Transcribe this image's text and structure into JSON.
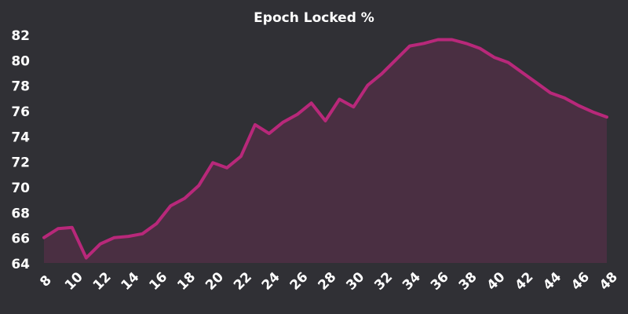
{
  "chart_data": {
    "type": "area",
    "title": "Epoch Locked %",
    "x": [
      8,
      9,
      10,
      11,
      12,
      13,
      14,
      15,
      16,
      17,
      18,
      19,
      20,
      21,
      22,
      23,
      24,
      25,
      26,
      27,
      28,
      29,
      30,
      31,
      32,
      33,
      34,
      35,
      36,
      37,
      38,
      39,
      40,
      41,
      42,
      43,
      44,
      45,
      46,
      47,
      48
    ],
    "series": [
      {
        "name": "Epoch Locked %",
        "color": "#b8287a",
        "fill": "#4a2f42",
        "values": [
          66.0,
          66.7,
          66.8,
          64.4,
          65.5,
          66.0,
          66.1,
          66.3,
          67.1,
          68.5,
          69.1,
          70.1,
          71.9,
          71.5,
          72.4,
          74.9,
          74.2,
          75.1,
          75.7,
          76.6,
          75.2,
          76.9,
          76.3,
          78.0,
          78.9,
          80.0,
          81.1,
          81.3,
          81.6,
          81.6,
          81.3,
          80.9,
          80.2,
          79.8,
          79.0,
          78.2,
          77.4,
          77.0,
          76.4,
          75.9,
          75.5
        ]
      }
    ],
    "xlim": [
      8,
      48
    ],
    "xticks": [
      8,
      10,
      12,
      14,
      16,
      18,
      20,
      22,
      24,
      26,
      28,
      30,
      32,
      34,
      36,
      38,
      40,
      42,
      44,
      46,
      48
    ],
    "ylim": [
      64,
      82
    ],
    "yticks": [
      64,
      66,
      68,
      70,
      72,
      74,
      76,
      78,
      80,
      82
    ],
    "background": "#303035"
  }
}
